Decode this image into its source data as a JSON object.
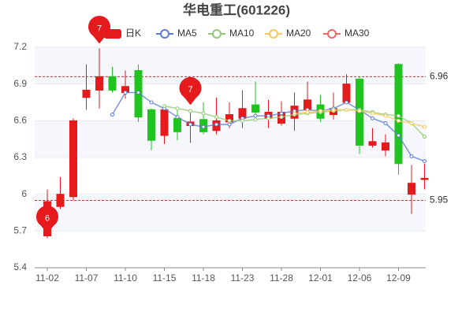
{
  "chart_data": {
    "type": "candlestick",
    "title": "华电重工(601226)",
    "categories": [
      "11-02",
      null,
      null,
      "11-07",
      null,
      null,
      "11-10",
      null,
      null,
      "11-15",
      null,
      null,
      "11-18",
      null,
      null,
      "11-23",
      null,
      null,
      "11-28",
      null,
      null,
      "12-01",
      null,
      null,
      "12-06",
      null,
      null,
      "12-09",
      null,
      null
    ],
    "candles": {
      "name": "日K",
      "up_color": "#e41a1c",
      "down_color": "#1fc41f",
      "open": [
        5.66,
        5.9,
        5.98,
        6.79,
        6.85,
        6.96,
        6.83,
        7.01,
        6.69,
        6.48,
        6.62,
        6.56,
        6.61,
        6.52,
        6.59,
        6.62,
        6.73,
        6.62,
        6.58,
        6.62,
        6.69,
        6.73,
        6.65,
        6.75,
        6.94,
        6.4,
        6.36,
        7.06,
        6.0,
        6.12
      ],
      "high": [
        6.04,
        6.14,
        6.62,
        7.06,
        7.19,
        7.04,
        7.01,
        7.06,
        6.7,
        6.72,
        6.69,
        6.69,
        6.75,
        6.79,
        6.75,
        6.85,
        6.92,
        6.77,
        6.76,
        6.83,
        6.92,
        6.81,
        6.83,
        6.98,
        6.96,
        6.54,
        6.49,
        7.07,
        6.24,
        6.25
      ],
      "low": [
        5.64,
        5.88,
        5.95,
        6.69,
        6.7,
        6.83,
        6.78,
        6.59,
        6.36,
        6.41,
        6.44,
        6.42,
        6.49,
        6.49,
        6.54,
        6.54,
        6.62,
        6.54,
        6.56,
        6.52,
        6.65,
        6.59,
        6.61,
        6.74,
        6.33,
        6.38,
        6.31,
        6.16,
        5.84,
        6.04
      ],
      "close": [
        5.94,
        6.0,
        6.6,
        6.85,
        6.96,
        6.85,
        6.88,
        6.63,
        6.44,
        6.69,
        6.51,
        6.59,
        6.51,
        6.6,
        6.65,
        6.7,
        6.67,
        6.67,
        6.67,
        6.72,
        6.77,
        6.62,
        6.7,
        6.9,
        6.4,
        6.43,
        6.42,
        6.25,
        6.09,
        6.13
      ]
    },
    "series": [
      {
        "name": "MA5",
        "color": "#5b7bd5",
        "values": [
          null,
          null,
          null,
          null,
          null,
          6.65,
          6.83,
          6.83,
          6.75,
          6.7,
          6.63,
          6.57,
          6.55,
          6.57,
          6.57,
          6.62,
          6.64,
          6.64,
          6.66,
          6.68,
          6.69,
          6.68,
          6.7,
          6.75,
          6.69,
          6.62,
          6.58,
          6.48,
          6.31,
          6.27
        ]
      },
      {
        "name": "MA10",
        "color": "#91cc75",
        "values": [
          null,
          null,
          null,
          null,
          null,
          null,
          null,
          null,
          null,
          6.72,
          6.7,
          6.68,
          6.66,
          6.63,
          6.6,
          6.6,
          6.61,
          6.62,
          6.63,
          6.65,
          6.66,
          6.67,
          6.68,
          6.69,
          6.69,
          6.67,
          6.65,
          6.64,
          6.58,
          6.47
        ]
      },
      {
        "name": "MA20",
        "color": "#fac858",
        "values": [
          null,
          null,
          null,
          null,
          null,
          null,
          null,
          null,
          null,
          null,
          null,
          null,
          null,
          null,
          null,
          null,
          null,
          null,
          null,
          6.66,
          6.67,
          6.68,
          6.69,
          6.69,
          6.68,
          6.66,
          6.64,
          6.6,
          6.58,
          6.55
        ]
      },
      {
        "name": "MA30",
        "color": "#ee6666",
        "values": [
          null,
          null,
          null,
          null,
          null,
          null,
          null,
          null,
          null,
          null,
          null,
          null,
          null,
          null,
          null,
          null,
          null,
          null,
          null,
          null,
          null,
          null,
          null,
          null,
          null,
          null,
          null,
          null,
          null,
          null
        ]
      }
    ],
    "reference_lines": [
      6.96,
      5.95
    ],
    "reference_color": "#c23531",
    "annotations": [
      "7",
      "7",
      "6"
    ],
    "ylim": [
      5.4,
      7.2
    ],
    "yticks": [
      5.4,
      5.7,
      6,
      6.3,
      6.6,
      6.9,
      7.2
    ],
    "grid": true
  }
}
